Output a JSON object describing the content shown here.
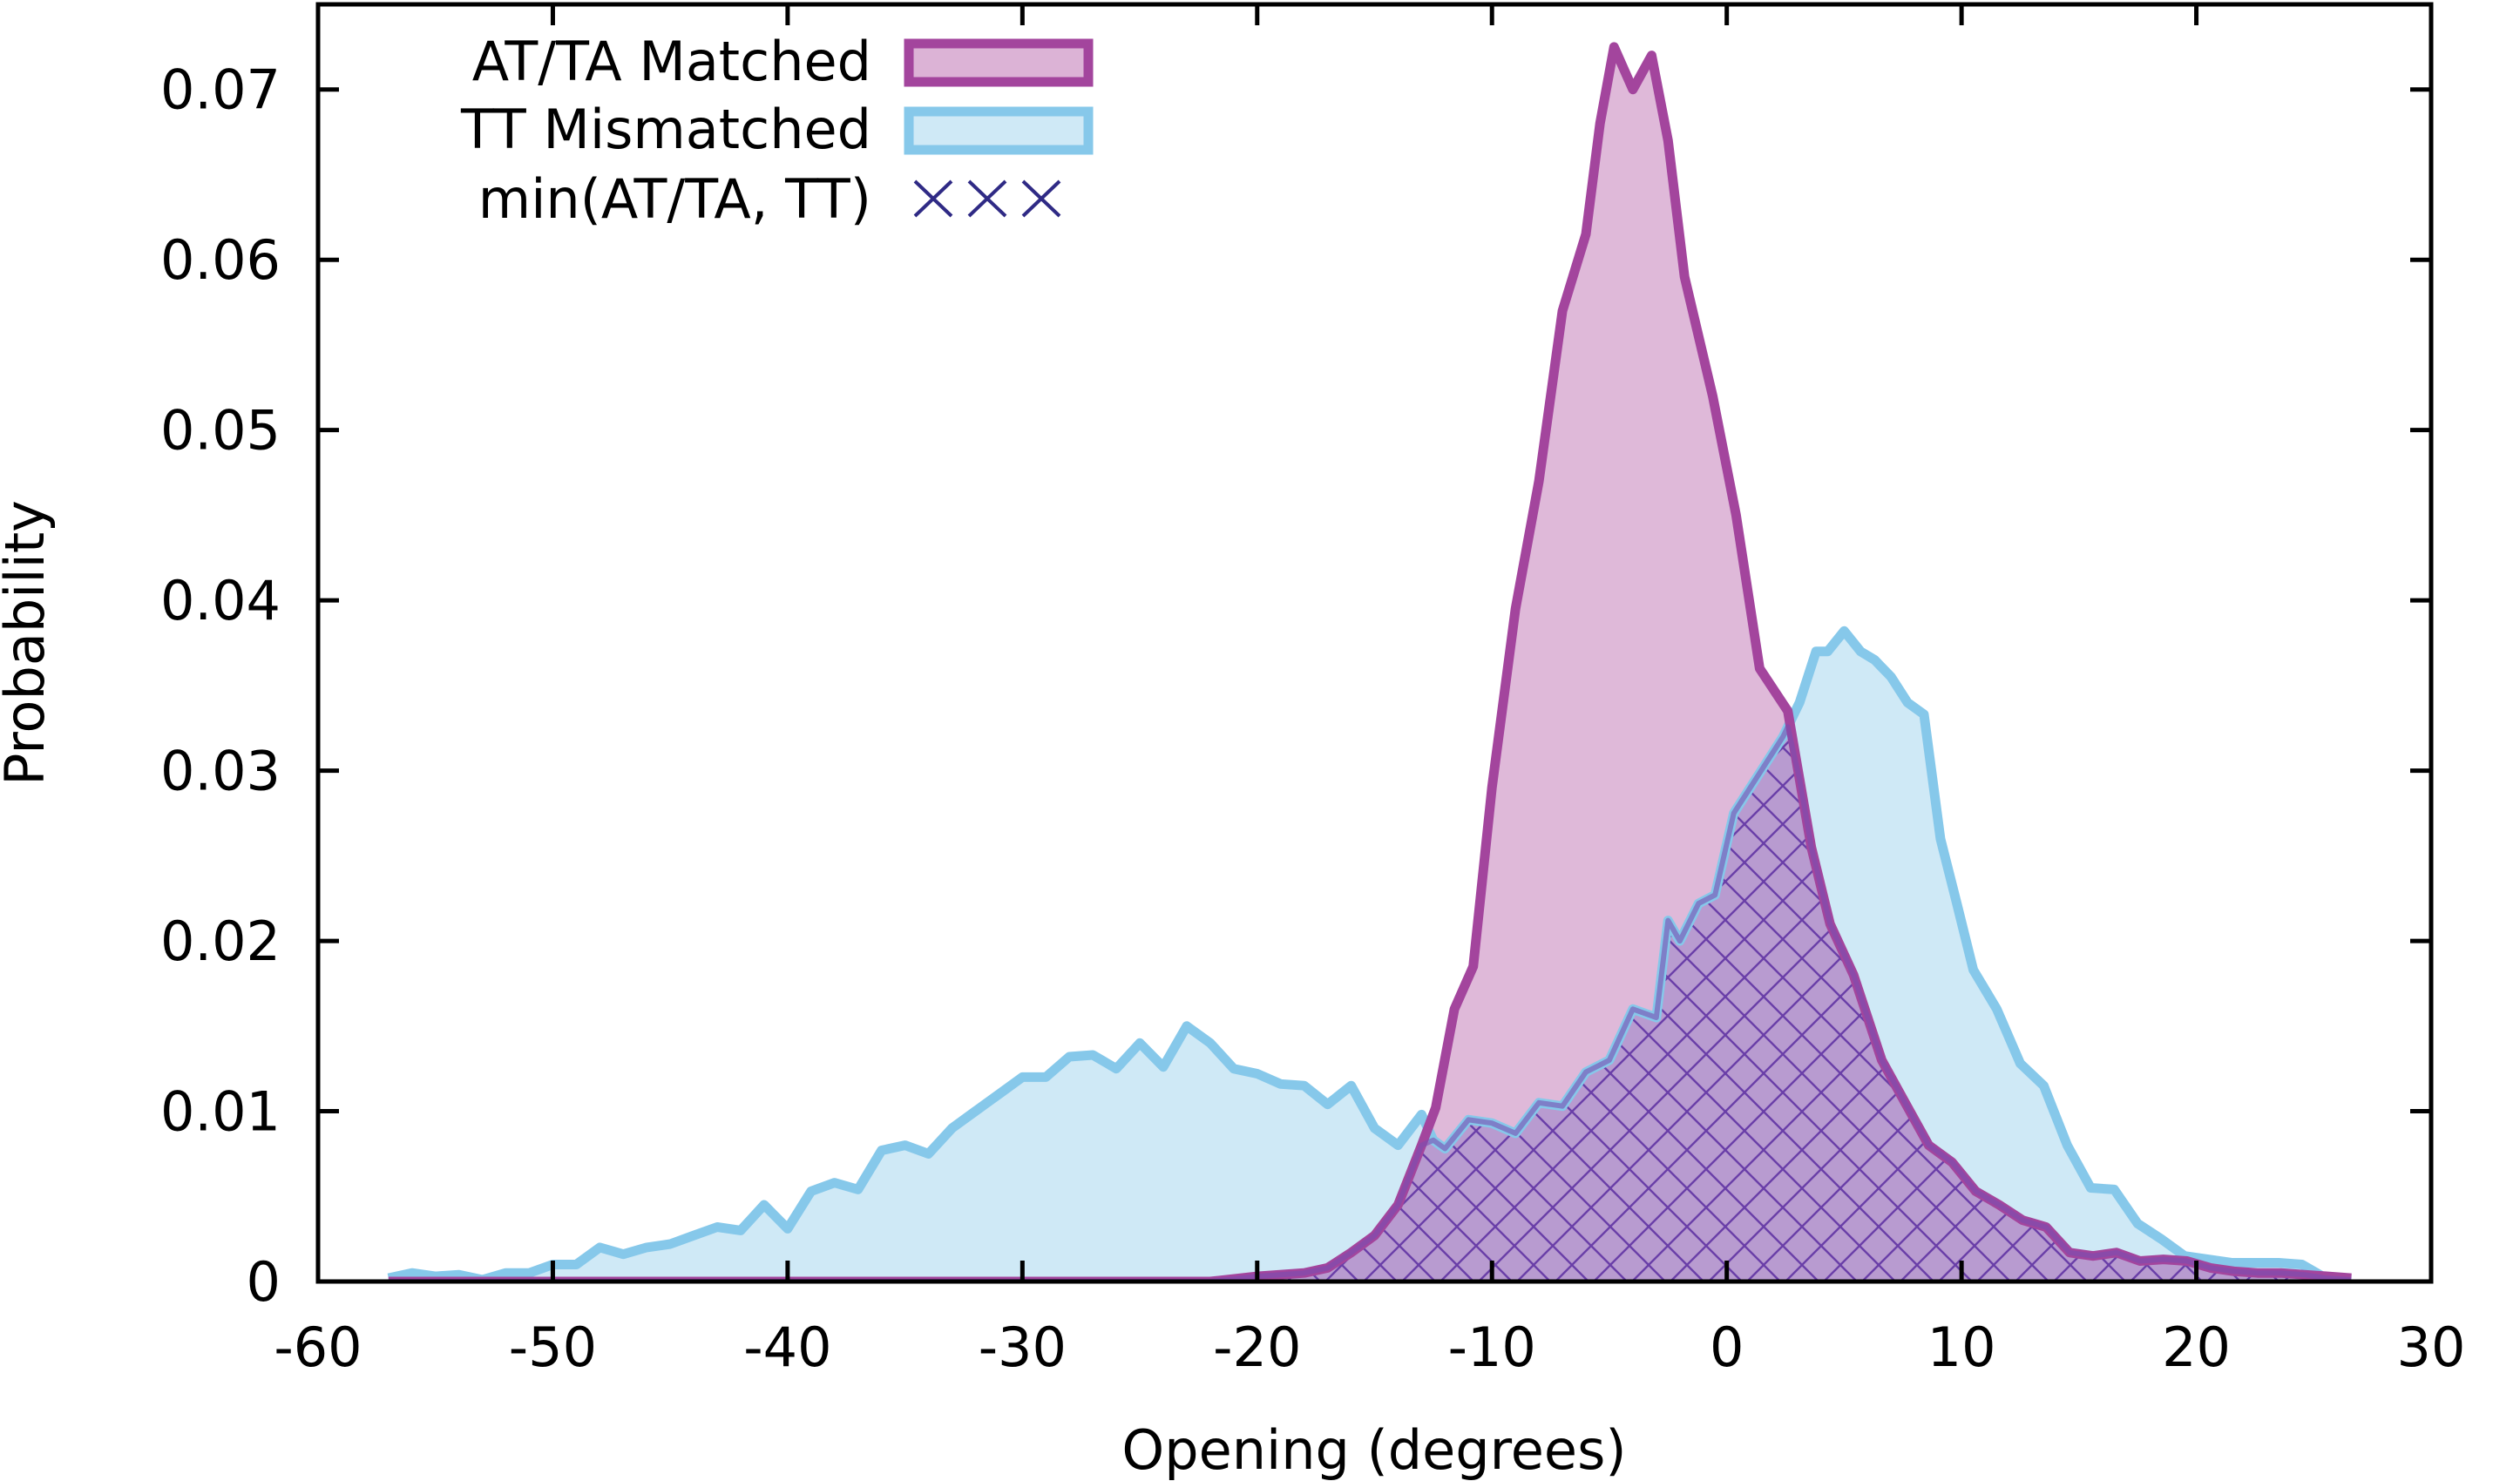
{
  "chart_data": {
    "type": "area",
    "title": "",
    "xlabel": "Opening (degrees)",
    "ylabel": "Probability",
    "xlim": [
      -60,
      30
    ],
    "ylim": [
      0,
      0.075
    ],
    "xticks": [
      -60,
      -50,
      -40,
      -30,
      -20,
      -10,
      0,
      10,
      20,
      30
    ],
    "xtick_labels": [
      "-60",
      "-50",
      "-40",
      "-30",
      "-20",
      "-10",
      "0",
      "10",
      "20",
      "30"
    ],
    "yticks": [
      0,
      0.01,
      0.02,
      0.03,
      0.04,
      0.05,
      0.06,
      0.07
    ],
    "ytick_labels": [
      "0",
      "0.01",
      "0.02",
      "0.03",
      "0.04",
      "0.05",
      "0.06",
      "0.07"
    ],
    "grid": false,
    "legend_position": "top-left",
    "legend": [
      {
        "label": "AT/TA Matched",
        "style": "fill"
      },
      {
        "label": "TT Mismatched",
        "style": "fill"
      },
      {
        "label": "min(AT/TA, TT)",
        "style": "hatch"
      }
    ],
    "series": [
      {
        "name": "AT/TA Matched",
        "stroke": "#a3459d",
        "fill": "#dcb3d6",
        "x": [
          -57,
          -30,
          -22,
          -20,
          -18,
          -17,
          -16,
          -15,
          -14,
          -13,
          -12.4,
          -11.6,
          -10.8,
          -10,
          -9,
          -8,
          -7,
          -6,
          -5.4,
          -4.8,
          -4,
          -3.2,
          -2.5,
          -1.8,
          -0.6,
          0.4,
          1.4,
          2.6,
          3.6,
          4.4,
          5.4,
          6.6,
          7.6,
          8.6,
          9.6,
          10.6,
          11.6,
          12.6,
          13.6,
          14.6,
          15.6,
          16.6,
          17.6,
          18.6,
          19.6,
          20.6,
          21.6,
          22.6,
          23.6,
          24.6,
          25.6,
          26.6
        ],
        "values": [
          0,
          0,
          0,
          0.0003,
          0.0005,
          0.0008,
          0.0017,
          0.0027,
          0.0045,
          0.008,
          0.0102,
          0.016,
          0.0185,
          0.029,
          0.0395,
          0.047,
          0.057,
          0.0615,
          0.068,
          0.0725,
          0.07,
          0.072,
          0.067,
          0.059,
          0.052,
          0.045,
          0.036,
          0.0335,
          0.0255,
          0.021,
          0.018,
          0.013,
          0.0105,
          0.008,
          0.007,
          0.0053,
          0.0045,
          0.0036,
          0.0032,
          0.0017,
          0.0015,
          0.0017,
          0.0012,
          0.0013,
          0.0012,
          0.0008,
          0.0006,
          0.0005,
          0.0005,
          0.0004,
          0.0003,
          0.0002
        ]
      },
      {
        "name": "TT Mismatched",
        "stroke": "#86c8ea",
        "fill": "#cfe9f6",
        "x": [
          -57,
          -56,
          -55,
          -54,
          -53,
          -52,
          -51,
          -50,
          -49,
          -48,
          -47,
          -46,
          -45,
          -44,
          -43,
          -42,
          -41,
          -40,
          -39,
          -38,
          -37,
          -36,
          -35,
          -34,
          -33,
          -32,
          -31,
          -30,
          -29,
          -28,
          -27,
          -26,
          -25,
          -24,
          -23,
          -22,
          -21,
          -20,
          -19,
          -18,
          -17,
          -16,
          -15,
          -14,
          -13,
          -12.5,
          -12,
          -11,
          -10,
          -9,
          -8,
          -7,
          -6,
          -5,
          -4,
          -3,
          -2.5,
          -2,
          -1.2,
          -0.5,
          0.3,
          1,
          1.7,
          2.4,
          3.1,
          3.8,
          4.3,
          5,
          5.7,
          6.3,
          7,
          7.7,
          8.4,
          9.1,
          9.8,
          10.5,
          11.5,
          12.5,
          13.5,
          14.5,
          15.5,
          16.5,
          17.5,
          18.5,
          19.5,
          20.5,
          21.5,
          22.5,
          23.5,
          24.5,
          25.5,
          26.6
        ],
        "values": [
          0.0002,
          0.0005,
          0.0003,
          0.0004,
          0.0001,
          0.0005,
          0.0005,
          0.001,
          0.001,
          0.002,
          0.0016,
          0.002,
          0.0022,
          0.0027,
          0.0032,
          0.003,
          0.0045,
          0.0031,
          0.0053,
          0.0058,
          0.0054,
          0.0077,
          0.008,
          0.0075,
          0.009,
          0.01,
          0.011,
          0.012,
          0.012,
          0.0132,
          0.0133,
          0.0125,
          0.014,
          0.0126,
          0.015,
          0.014,
          0.0125,
          0.0122,
          0.0116,
          0.0115,
          0.0104,
          0.0115,
          0.009,
          0.008,
          0.0098,
          0.0083,
          0.0078,
          0.0095,
          0.0093,
          0.0087,
          0.0105,
          0.0103,
          0.0123,
          0.013,
          0.016,
          0.0155,
          0.0212,
          0.02,
          0.0222,
          0.0227,
          0.0275,
          0.029,
          0.0305,
          0.032,
          0.034,
          0.037,
          0.037,
          0.0382,
          0.037,
          0.0365,
          0.0355,
          0.034,
          0.0333,
          0.026,
          0.0222,
          0.0183,
          0.016,
          0.0128,
          0.0115,
          0.008,
          0.0055,
          0.0054,
          0.0034,
          0.0025,
          0.0015,
          0.0013,
          0.0011,
          0.0011,
          0.0011,
          0.001,
          0.0002,
          0.0001
        ]
      }
    ],
    "overlap": {
      "name": "min(AT/TA, TT)",
      "stroke": "#7a4fb0",
      "fill": "#b89bd0",
      "hatch_color": "#6a3fa8"
    }
  }
}
